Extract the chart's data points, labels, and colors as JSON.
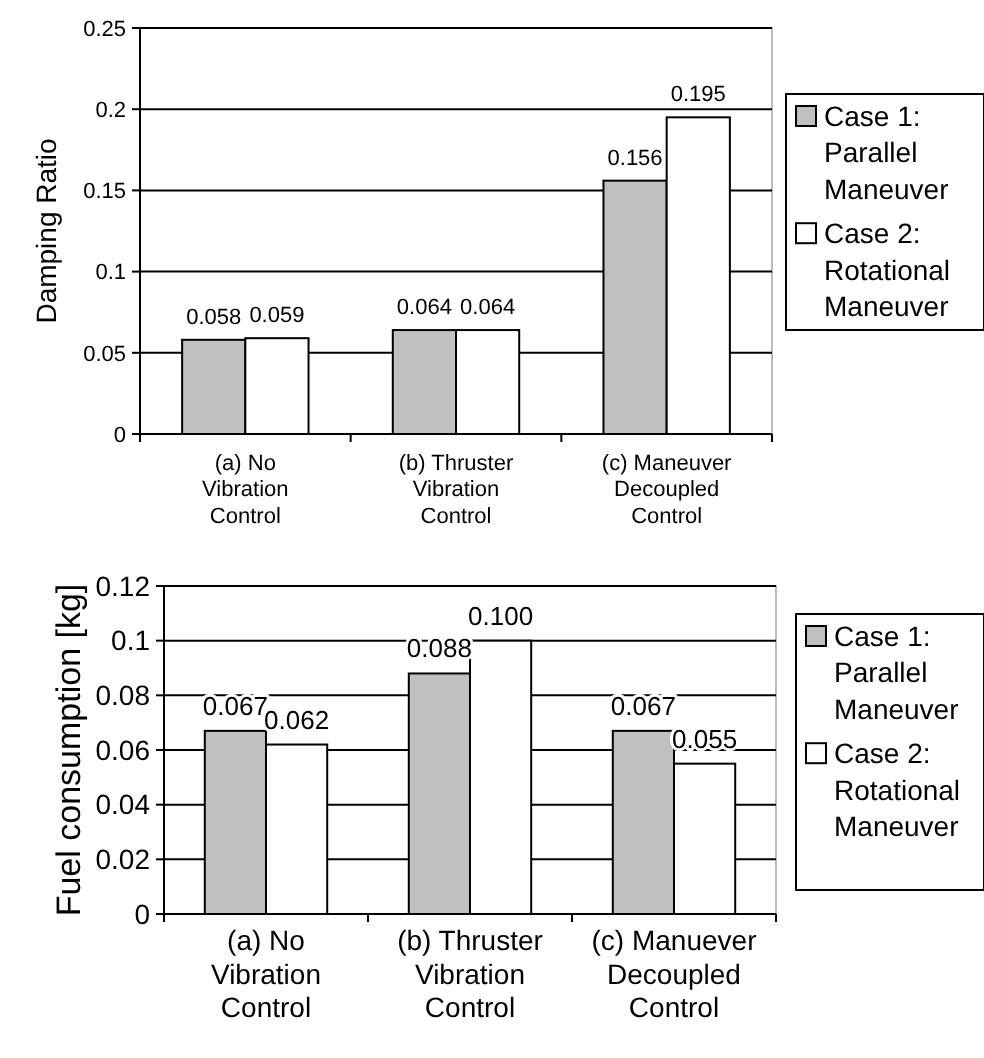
{
  "chart_data": [
    {
      "type": "bar",
      "ylabel": "Damping Ratio",
      "categories": [
        "(a) No Vibration Control",
        "(b) Thruster Vibration Control",
        "(c) Maneuver Decoupled Control"
      ],
      "series": [
        {
          "name": "Case 1: Parallel Maneuver",
          "color": "#c0c0c0",
          "values": [
            0.058,
            0.064,
            0.156
          ],
          "value_labels": [
            "0.058",
            "0.064",
            "0.156"
          ]
        },
        {
          "name": "Case 2: Rotational Maneuver",
          "color": "#ffffff",
          "values": [
            0.059,
            0.064,
            0.195
          ],
          "value_labels": [
            "0.059",
            "0.064",
            "0.195"
          ]
        }
      ],
      "ylim": [
        0,
        0.25
      ],
      "yticks": [
        0,
        0.05,
        0.1,
        0.15,
        0.2,
        0.25
      ],
      "grid": "y",
      "legend": "right"
    },
    {
      "type": "bar",
      "ylabel": "Fuel consumption [kg]",
      "categories": [
        "(a) No Vibration Control",
        "(b) Thruster Vibration Control",
        "(c) Manuever Decoupled Control"
      ],
      "series": [
        {
          "name": "Case 1: Parallel Maneuver",
          "color": "#c0c0c0",
          "values": [
            0.067,
            0.088,
            0.067
          ],
          "value_labels": [
            "0.067",
            "0.088",
            "0.067"
          ]
        },
        {
          "name": "Case 2: Rotational Maneuver",
          "color": "#ffffff",
          "values": [
            0.062,
            0.1,
            0.055
          ],
          "value_labels": [
            "0.062",
            "0.100",
            "0.055"
          ]
        }
      ],
      "ylim": [
        0,
        0.12
      ],
      "yticks": [
        0,
        0.02,
        0.04,
        0.06,
        0.08,
        0.1,
        0.12
      ],
      "grid": "y",
      "legend": "right"
    }
  ]
}
